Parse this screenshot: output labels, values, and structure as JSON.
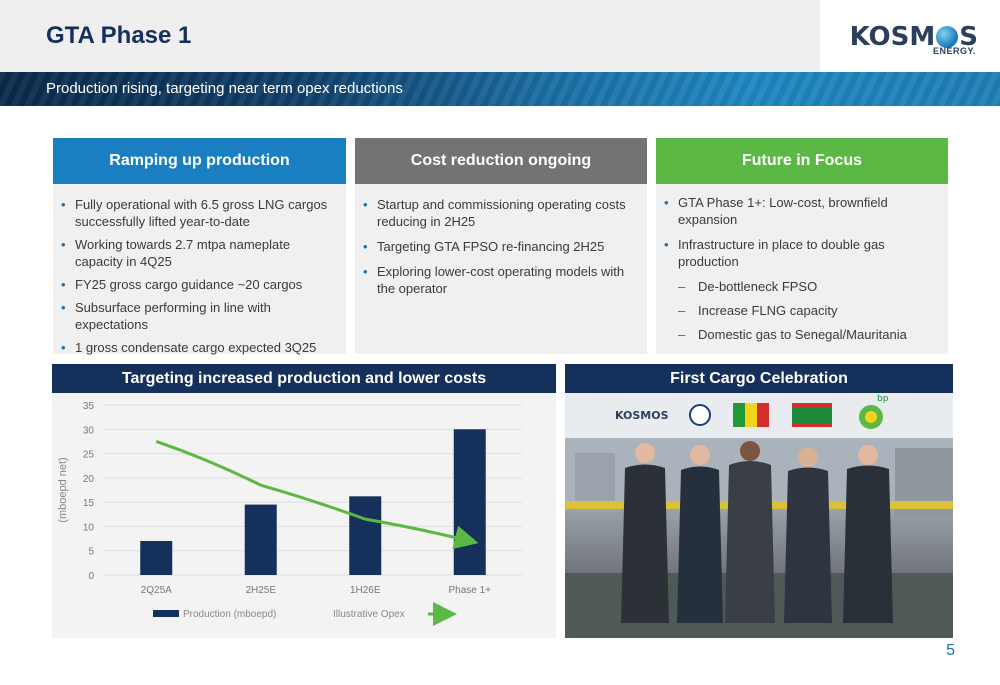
{
  "header": {
    "title": "GTA Phase 1",
    "logo_text_left": "KOSM",
    "logo_text_right": "S",
    "logo_sub": "ENERGY."
  },
  "banner": {
    "subtitle": "Production rising, targeting near term opex reductions"
  },
  "columns": [
    {
      "title": "Ramping up production",
      "color": "#1a7fc1",
      "bullets": [
        "Fully operational with 6.5 gross LNG cargos successfully lifted year-to-date",
        "Working towards 2.7 mtpa nameplate capacity in 4Q25",
        "FY25 gross cargo guidance ~20 cargos",
        "Subsurface performing in line with expectations",
        "1 gross condensate cargo expected 3Q25"
      ]
    },
    {
      "title": "Cost reduction ongoing",
      "color": "#737373",
      "bullets": [
        "Startup and commissioning operating costs reducing in 2H25",
        "Targeting GTA FPSO re-financing 2H25",
        "Exploring lower-cost operating models with the operator"
      ]
    },
    {
      "title": "Future in Focus",
      "color": "#5cb845",
      "bullets": [
        "GTA Phase 1+: Low-cost, brownfield expansion",
        "Infrastructure in place to double gas production"
      ],
      "sub_bullets": [
        "De-bottleneck FPSO",
        "Increase FLNG capacity",
        "Domestic gas to Senegal/Mauritania"
      ]
    }
  ],
  "chart_panel": {
    "title": "Targeting increased production and lower costs"
  },
  "chart_data": {
    "type": "bar",
    "categories": [
      "2Q25A",
      "2H25E",
      "1H26E",
      "Phase 1+"
    ],
    "series": [
      {
        "name": "Production (mboepd)",
        "values": [
          7,
          14.5,
          16.2,
          30
        ],
        "color": "#15305a"
      },
      {
        "name": "Illustrative Opex",
        "type": "line",
        "color": "#5cb845",
        "values": [
          27.5,
          18.5,
          11.5,
          7
        ]
      }
    ],
    "ylabel": "(mboepd net)",
    "ylim": [
      0,
      35
    ],
    "yticks": [
      0,
      5,
      10,
      15,
      20,
      25,
      30,
      35
    ],
    "legend_position": "bottom",
    "grid": true
  },
  "photo_panel": {
    "title": "First Cargo Celebration",
    "photo_logo_text": "KOSMOS",
    "photo_bp_text": "bp"
  },
  "page_number": "5"
}
